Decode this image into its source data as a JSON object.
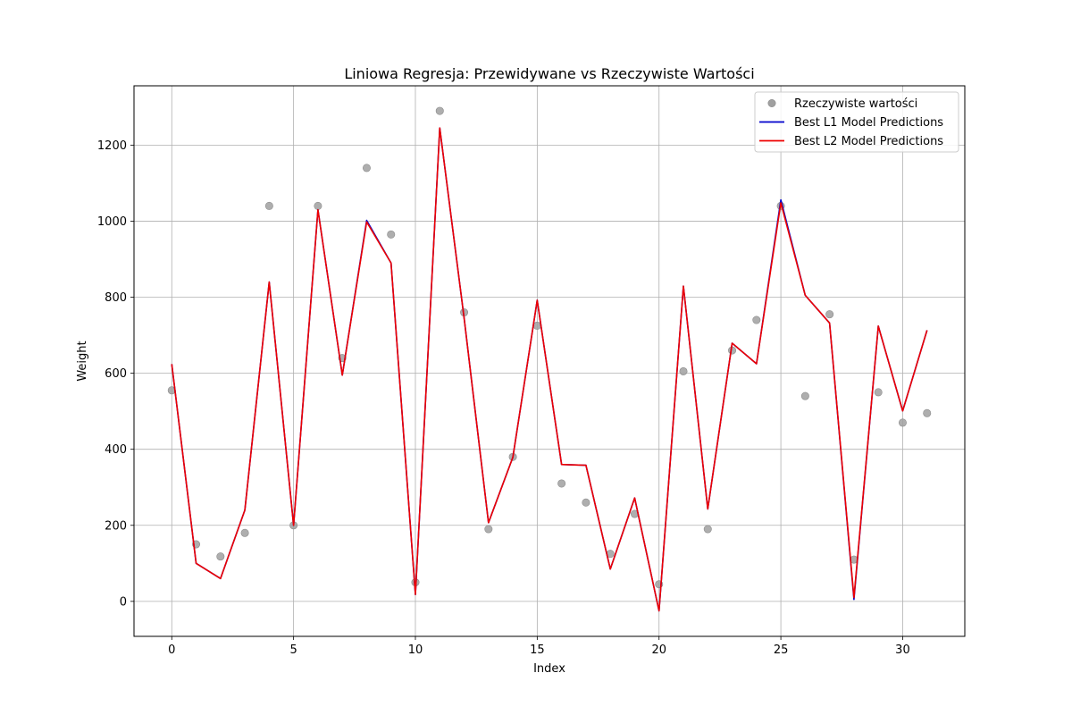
{
  "chart_data": {
    "type": "line",
    "title": "Liniowa Regresja: Przewidywane vs Rzeczywiste Wartości",
    "xlabel": "Index",
    "ylabel": "Weight",
    "xlim": [
      -1.55,
      32.55
    ],
    "ylim": [
      -92,
      1356
    ],
    "xticks": [
      0,
      5,
      10,
      15,
      20,
      25,
      30
    ],
    "yticks": [
      0,
      200,
      400,
      600,
      800,
      1000,
      1200
    ],
    "grid": true,
    "legend_position": "top-right",
    "x": [
      0,
      1,
      2,
      3,
      4,
      5,
      6,
      7,
      8,
      9,
      10,
      11,
      12,
      13,
      14,
      15,
      16,
      17,
      18,
      19,
      20,
      21,
      22,
      23,
      24,
      25,
      26,
      27,
      28,
      29,
      30,
      31
    ],
    "series": [
      {
        "name": "Rzeczywiste wartości",
        "kind": "scatter",
        "color": "#a0a0a0",
        "values": [
          555,
          150,
          118,
          180,
          1040,
          200,
          1040,
          640,
          1140,
          965,
          50,
          1290,
          760,
          190,
          380,
          725,
          310,
          260,
          125,
          230,
          45,
          605,
          190,
          660,
          740,
          1040,
          540,
          755,
          110,
          550,
          470,
          495
        ]
      },
      {
        "name": "Best L1 Model Predictions",
        "kind": "line",
        "color": "#0000cc",
        "values": [
          624,
          100,
          60,
          240,
          840,
          200,
          1030,
          595,
          1002,
          890,
          18,
          1245,
          745,
          207,
          379,
          792,
          360,
          358,
          85,
          272,
          -25,
          829,
          243,
          679,
          625,
          1056,
          805,
          732,
          5,
          724,
          501,
          713
        ]
      },
      {
        "name": "Best L2 Model Predictions",
        "kind": "line",
        "color": "#ee0000",
        "values": [
          624,
          100,
          60,
          240,
          840,
          200,
          1030,
          595,
          998,
          890,
          18,
          1245,
          745,
          207,
          379,
          792,
          360,
          358,
          85,
          272,
          -25,
          829,
          243,
          679,
          625,
          1048,
          805,
          732,
          10,
          724,
          501,
          713
        ]
      }
    ]
  }
}
